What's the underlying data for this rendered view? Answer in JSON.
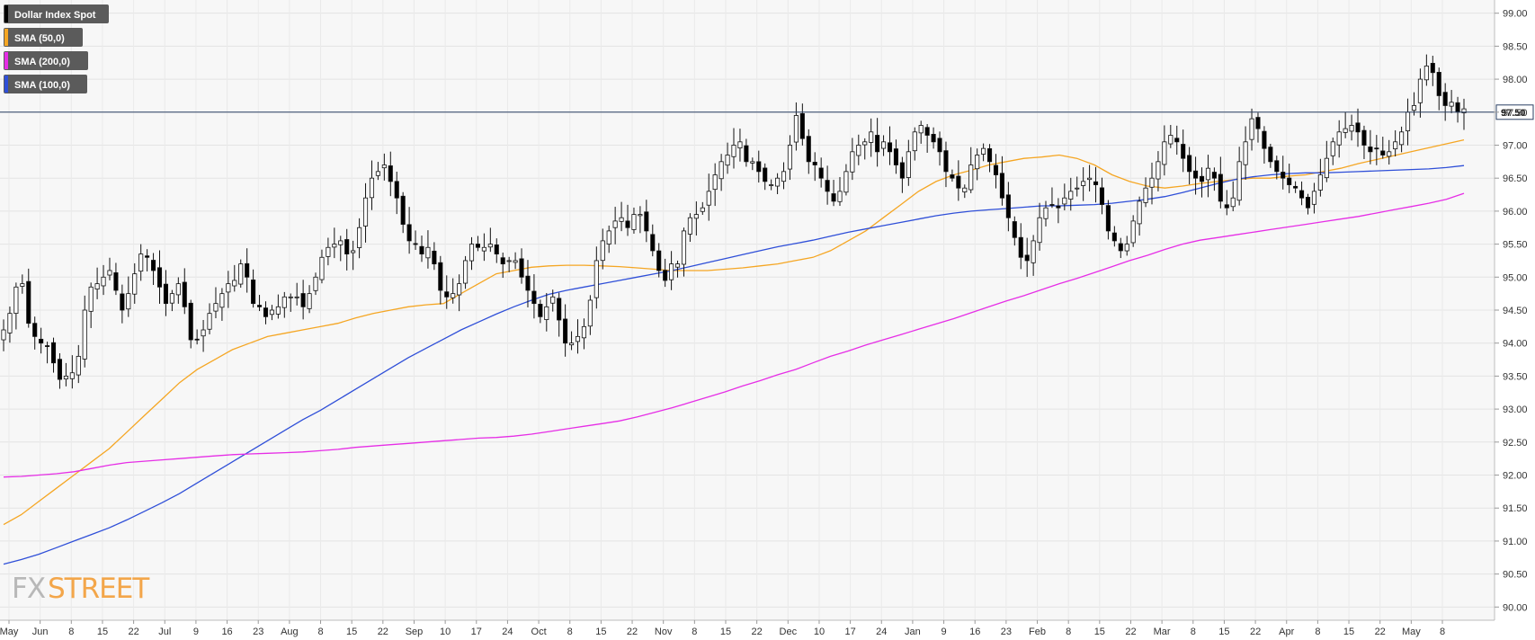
{
  "logo": {
    "part1": "FX",
    "part2": "STREET"
  },
  "chart_data": {
    "type": "candlestick",
    "title": "",
    "xlabel": "",
    "ylabel": "",
    "y_axis_side": "right",
    "ylim": [
      89.8,
      99.2
    ],
    "yticks": [
      "99.00",
      "98.50",
      "98.00",
      "97.50",
      "97.00",
      "96.50",
      "96.00",
      "95.50",
      "95.00",
      "94.50",
      "94.00",
      "93.50",
      "93.00",
      "92.50",
      "92.00",
      "91.50",
      "91.00",
      "90.50",
      "90.00"
    ],
    "xticks": [
      "May",
      "Jun",
      "8",
      "15",
      "22",
      "Jul",
      "9",
      "16",
      "23",
      "Aug",
      "8",
      "15",
      "22",
      "Sep",
      "10",
      "17",
      "24",
      "Oct",
      "8",
      "15",
      "22",
      "Nov",
      "8",
      "15",
      "22",
      "Dec",
      "10",
      "17",
      "24",
      "Jan",
      "9",
      "16",
      "23",
      "Feb",
      "8",
      "15",
      "22",
      "Mar",
      "8",
      "15",
      "22",
      "Apr",
      "8",
      "15",
      "22",
      "May",
      "8"
    ],
    "grid": true,
    "legend_position": "top-left",
    "legend": [
      {
        "name": "Dollar Index Spot",
        "color": "#000000"
      },
      {
        "name": "SMA (50,0)",
        "color": "#f5a623"
      },
      {
        "name": "SMA (200,0)",
        "color": "#e62ee6"
      },
      {
        "name": "SMA (100,0)",
        "color": "#2f4fd8"
      }
    ],
    "current_price": {
      "value": 97.5,
      "label": "97.50"
    },
    "series": [
      {
        "name": "Dollar Index Spot",
        "kind": "candles",
        "color_up": "#ffffff",
        "color_down": "#000000",
        "close": [
          94.2,
          94.45,
          94.85,
          94.9,
          94.3,
          94.1,
          94.0,
          93.95,
          93.7,
          93.45,
          93.5,
          93.55,
          93.8,
          94.5,
          94.85,
          94.9,
          95.0,
          95.1,
          94.8,
          94.5,
          94.75,
          95.05,
          95.35,
          95.3,
          95.1,
          94.85,
          94.6,
          94.75,
          94.9,
          94.55,
          94.05,
          94.05,
          94.2,
          94.45,
          94.6,
          94.75,
          94.9,
          94.95,
          95.2,
          95.0,
          94.6,
          94.55,
          94.4,
          94.5,
          94.55,
          94.7,
          94.7,
          94.7,
          94.55,
          94.75,
          95.0,
          95.3,
          95.45,
          95.5,
          95.55,
          95.35,
          95.4,
          95.75,
          96.2,
          96.5,
          96.6,
          96.7,
          96.45,
          96.2,
          95.8,
          95.55,
          95.5,
          95.35,
          95.45,
          95.2,
          94.8,
          94.7,
          94.75,
          94.9,
          95.25,
          95.5,
          95.45,
          95.45,
          95.5,
          95.35,
          95.2,
          95.25,
          95.25,
          95.0,
          94.8,
          94.6,
          94.4,
          94.55,
          94.7,
          94.35,
          94.0,
          94.0,
          94.1,
          94.25,
          94.65,
          95.25,
          95.55,
          95.7,
          95.85,
          95.9,
          95.75,
          95.95,
          95.95,
          95.7,
          95.4,
          95.1,
          94.95,
          95.2,
          95.2,
          95.7,
          95.9,
          95.95,
          96.05,
          96.3,
          96.55,
          96.75,
          96.85,
          97.0,
          97.05,
          96.75,
          96.75,
          96.6,
          96.45,
          96.4,
          96.5,
          96.6,
          97.0,
          97.45,
          97.1,
          96.75,
          96.7,
          96.5,
          96.3,
          96.15,
          96.3,
          96.6,
          96.9,
          97.0,
          97.05,
          97.2,
          96.9,
          97.05,
          96.9,
          96.7,
          96.5,
          96.9,
          97.2,
          97.3,
          97.15,
          97.05,
          96.9,
          96.6,
          96.5,
          96.35,
          96.35,
          96.7,
          96.85,
          96.95,
          96.75,
          96.55,
          96.2,
          95.9,
          95.6,
          95.3,
          95.25,
          95.55,
          95.9,
          96.05,
          96.1,
          96.05,
          96.2,
          96.3,
          96.35,
          96.45,
          96.5,
          96.4,
          96.1,
          95.7,
          95.55,
          95.4,
          95.5,
          95.85,
          96.15,
          96.35,
          96.5,
          96.75,
          97.05,
          97.15,
          97.05,
          96.8,
          96.6,
          96.5,
          96.45,
          96.65,
          96.5,
          96.15,
          96.05,
          96.2,
          96.75,
          97.05,
          97.4,
          97.25,
          96.95,
          96.75,
          96.6,
          96.5,
          96.4,
          96.35,
          96.2,
          96.05,
          96.3,
          96.55,
          96.8,
          97.05,
          97.2,
          97.25,
          97.3,
          97.2,
          97.0,
          96.9,
          96.95,
          96.85,
          96.9,
          97.05,
          97.2,
          97.5,
          97.6,
          98.0,
          98.2,
          98.1,
          97.75,
          97.6,
          97.65,
          97.5,
          97.55
        ]
      },
      {
        "name": "SMA (50,0)",
        "kind": "line",
        "color": "#f5a623",
        "values": [
          91.25,
          91.4,
          91.6,
          91.8,
          92.0,
          92.2,
          92.4,
          92.65,
          92.9,
          93.15,
          93.4,
          93.6,
          93.75,
          93.9,
          94.0,
          94.1,
          94.15,
          94.2,
          94.25,
          94.3,
          94.38,
          94.45,
          94.5,
          94.55,
          94.58,
          94.6,
          94.75,
          94.9,
          95.05,
          95.1,
          95.15,
          95.17,
          95.18,
          95.18,
          95.17,
          95.16,
          95.14,
          95.12,
          95.1,
          95.1,
          95.1,
          95.12,
          95.14,
          95.17,
          95.2,
          95.25,
          95.3,
          95.4,
          95.55,
          95.7,
          95.9,
          96.1,
          96.3,
          96.45,
          96.55,
          96.62,
          96.7,
          96.75,
          96.8,
          96.82,
          96.85,
          96.8,
          96.7,
          96.55,
          96.45,
          96.38,
          96.35,
          96.38,
          96.42,
          96.45,
          96.48,
          96.5,
          96.5,
          96.53,
          96.55,
          96.6,
          96.65,
          96.72,
          96.78,
          96.84,
          96.9,
          96.96,
          97.02,
          97.08
        ]
      },
      {
        "name": "SMA (100,0)",
        "kind": "line",
        "color": "#2f4fd8",
        "values": [
          90.65,
          90.72,
          90.8,
          90.9,
          91.0,
          91.1,
          91.2,
          91.32,
          91.45,
          91.58,
          91.72,
          91.88,
          92.04,
          92.2,
          92.36,
          92.52,
          92.68,
          92.84,
          92.98,
          93.14,
          93.3,
          93.46,
          93.62,
          93.78,
          93.92,
          94.06,
          94.2,
          94.32,
          94.44,
          94.55,
          94.65,
          94.74,
          94.8,
          94.85,
          94.9,
          94.95,
          95.0,
          95.05,
          95.1,
          95.16,
          95.22,
          95.28,
          95.34,
          95.4,
          95.46,
          95.51,
          95.56,
          95.62,
          95.68,
          95.73,
          95.78,
          95.83,
          95.88,
          95.93,
          95.97,
          96.0,
          96.02,
          96.04,
          96.06,
          96.08,
          96.08,
          96.09,
          96.1,
          96.12,
          96.15,
          96.18,
          96.22,
          96.28,
          96.35,
          96.42,
          96.48,
          96.52,
          96.55,
          96.57,
          96.58,
          96.58,
          96.59,
          96.6,
          96.61,
          96.62,
          96.63,
          96.64,
          96.66,
          96.69
        ]
      },
      {
        "name": "SMA (200,0)",
        "kind": "line",
        "color": "#e62ee6",
        "values": [
          91.97,
          91.98,
          92.0,
          92.02,
          92.05,
          92.1,
          92.15,
          92.19,
          92.21,
          92.23,
          92.25,
          92.27,
          92.29,
          92.31,
          92.32,
          92.33,
          92.34,
          92.35,
          92.37,
          92.39,
          92.42,
          92.44,
          92.46,
          92.48,
          92.5,
          92.52,
          92.54,
          92.56,
          92.57,
          92.59,
          92.62,
          92.66,
          92.7,
          92.74,
          92.78,
          92.82,
          92.88,
          92.95,
          93.02,
          93.1,
          93.18,
          93.26,
          93.35,
          93.43,
          93.52,
          93.6,
          93.7,
          93.8,
          93.88,
          93.97,
          94.05,
          94.13,
          94.21,
          94.29,
          94.37,
          94.46,
          94.55,
          94.64,
          94.72,
          94.81,
          94.9,
          94.98,
          95.07,
          95.16,
          95.25,
          95.33,
          95.42,
          95.5,
          95.56,
          95.6,
          95.64,
          95.68,
          95.72,
          95.76,
          95.8,
          95.84,
          95.88,
          95.92,
          95.97,
          96.02,
          96.07,
          96.12,
          96.18,
          96.27
        ]
      }
    ]
  }
}
